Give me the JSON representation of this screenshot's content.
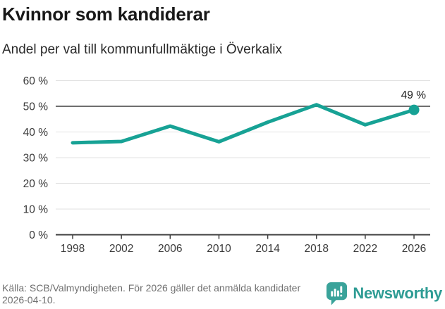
{
  "header": {
    "title": "Kvinnor som kandiderar",
    "subtitle": "Andel per val till kommunfullmäktige i Överkalix"
  },
  "chart_data": {
    "type": "line",
    "title": "Kvinnor som kandiderar",
    "subtitle": "Andel per val till kommunfullmäktige i Överkalix",
    "x": [
      1998,
      2002,
      2006,
      2010,
      2014,
      2018,
      2022,
      2026
    ],
    "x_labels": [
      "1998",
      "2002",
      "2006",
      "2010",
      "2014",
      "2018",
      "2022",
      "2026"
    ],
    "values": [
      35.8,
      36.3,
      42.3,
      36.2,
      43.8,
      50.6,
      42.8,
      48.6
    ],
    "unit": "%",
    "ylim": [
      0,
      60
    ],
    "y_ticks": [
      0,
      10,
      20,
      30,
      40,
      50,
      60
    ],
    "y_tick_labels": [
      "0 %",
      "10 %",
      "20 %",
      "30 %",
      "40 %",
      "50 %",
      "60 %"
    ],
    "reference_line": 50,
    "last_point_label": "49 %",
    "grid": true,
    "legend": "none",
    "colors": {
      "line": "#17A295",
      "marker": "#17A295",
      "reference_line": "#6E6E6E",
      "grid": "#E2E2E2",
      "axis": "#3D3D3D",
      "tick_text": "#3A3A3A",
      "annotation_text": "#1F1F1F"
    }
  },
  "footer": {
    "source": "Källa: SCB/Valmyndigheten. För 2026 gäller det anmälda kandidater 2026-04-10.",
    "brand": "Newsworthy",
    "brand_color": "#2E9C94",
    "brand_icon_color": "#3AA39A"
  }
}
